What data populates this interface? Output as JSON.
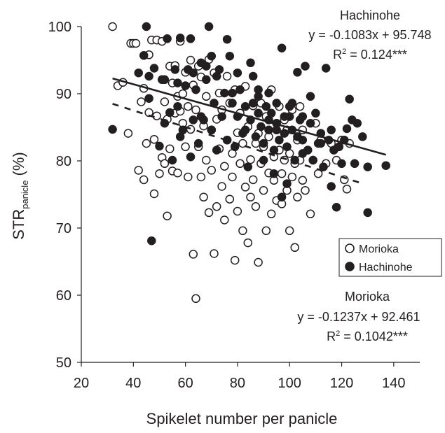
{
  "chart_data": {
    "type": "scatter",
    "xlabel": "Spikelet number per panicle",
    "ylabel_main": "STR",
    "ylabel_sub": "panicle",
    "ylabel_unit": " (%)",
    "xlim": [
      20,
      150
    ],
    "ylim": [
      50,
      100
    ],
    "xticks": [
      20,
      40,
      60,
      80,
      100,
      120,
      140
    ],
    "yticks": [
      50,
      60,
      70,
      80,
      90,
      100
    ],
    "grid": false,
    "legend_position": "right",
    "series": [
      {
        "name": "Morioka",
        "marker": "open-circle",
        "line_style": "dashed",
        "regression": {
          "slope": -0.1237,
          "intercept": 92.461,
          "x_range": [
            32,
            128
          ]
        },
        "annotation": {
          "name": "Morioka",
          "equation": "y = -0.1237x + 92.461",
          "r2_prefix": "R",
          "r2_sup": "2",
          "r2_value": " = 0.1042***"
        },
        "points": [
          [
            32,
            100
          ],
          [
            34,
            91.2
          ],
          [
            36,
            91.7
          ],
          [
            38,
            84.1
          ],
          [
            39,
            97.5
          ],
          [
            40,
            97.5
          ],
          [
            41,
            97.5
          ],
          [
            42,
            78.6
          ],
          [
            43,
            88.8
          ],
          [
            44,
            77.2
          ],
          [
            44,
            90.8
          ],
          [
            45,
            82.6
          ],
          [
            46,
            95.8
          ],
          [
            46,
            87.2
          ],
          [
            47,
            98
          ],
          [
            48,
            83.2
          ],
          [
            48,
            75.1
          ],
          [
            49,
            98
          ],
          [
            49,
            86.7
          ],
          [
            50,
            78.1
          ],
          [
            51,
            97.8
          ],
          [
            51,
            80.5
          ],
          [
            52,
            88.8
          ],
          [
            52,
            79.6
          ],
          [
            53,
            71.8
          ],
          [
            53,
            86.2
          ],
          [
            54,
            94.1
          ],
          [
            54,
            81.8
          ],
          [
            55,
            91.6
          ],
          [
            55,
            78.5
          ],
          [
            56,
            87.1
          ],
          [
            56,
            94.2
          ],
          [
            57,
            89.6
          ],
          [
            57,
            78.2
          ],
          [
            58,
            87.4
          ],
          [
            58,
            97.8
          ],
          [
            59,
            90
          ],
          [
            59,
            85.6
          ],
          [
            60,
            93.2
          ],
          [
            60,
            82.1
          ],
          [
            61,
            88.1
          ],
          [
            61,
            77.6
          ],
          [
            62,
            95
          ],
          [
            62,
            84.7
          ],
          [
            63,
            91.3
          ],
          [
            63,
            66.1
          ],
          [
            64,
            87.6
          ],
          [
            64,
            59.5
          ],
          [
            65,
            82.1
          ],
          [
            65,
            94.1
          ],
          [
            66,
            77.6
          ],
          [
            66,
            92.5
          ],
          [
            67,
            74.6
          ],
          [
            67,
            85.2
          ],
          [
            68,
            89.6
          ],
          [
            68,
            80.1
          ],
          [
            69,
            72.3
          ],
          [
            69,
            95.1
          ],
          [
            70,
            84.6
          ],
          [
            70,
            78.6
          ],
          [
            71,
            93.1
          ],
          [
            71,
            66.2
          ],
          [
            72,
            86.2
          ],
          [
            72,
            73.2
          ],
          [
            73,
            81.8
          ],
          [
            73,
            90.1
          ],
          [
            74,
            76.2
          ],
          [
            74,
            87.6
          ],
          [
            75,
            79.2
          ],
          [
            75,
            71.2
          ],
          [
            76,
            92.6
          ],
          [
            76,
            83.1
          ],
          [
            77,
            74.3
          ],
          [
            77,
            88.6
          ],
          [
            78,
            81.1
          ],
          [
            78,
            77.6
          ],
          [
            79,
            90.6
          ],
          [
            79,
            65.2
          ],
          [
            80,
            84.2
          ],
          [
            80,
            72.5
          ],
          [
            81,
            87.1
          ],
          [
            81,
            79.6
          ],
          [
            82,
            69.6
          ],
          [
            82,
            82.6
          ],
          [
            83,
            76.1
          ],
          [
            83,
            91.1
          ],
          [
            84,
            67.8
          ],
          [
            84,
            85.1
          ],
          [
            85,
            80.2
          ],
          [
            85,
            74.6
          ],
          [
            86,
            88.2
          ],
          [
            86,
            77.2
          ],
          [
            87,
            82.6
          ],
          [
            87,
            73.2
          ],
          [
            88,
            64.9
          ],
          [
            88,
            84.1
          ],
          [
            89,
            79.6
          ],
          [
            89,
            88.6
          ],
          [
            90,
            75.6
          ],
          [
            90,
            82.1
          ],
          [
            91,
            69.6
          ],
          [
            91,
            86.6
          ],
          [
            92,
            78.2
          ],
          [
            92,
            83.6
          ],
          [
            93,
            72.1
          ],
          [
            93,
            90.6
          ],
          [
            94,
            80.6
          ],
          [
            94,
            77.1
          ],
          [
            95,
            85.6
          ],
          [
            95,
            74.1
          ],
          [
            96,
            81.6
          ],
          [
            96,
            88.1
          ],
          [
            97,
            78.1
          ],
          [
            97,
            73.6
          ],
          [
            98,
            86.1
          ],
          [
            98,
            80.1
          ],
          [
            99,
            75.6
          ],
          [
            99,
            84.6
          ],
          [
            100,
            69.6
          ],
          [
            100,
            81.1
          ],
          [
            101,
            77.6
          ],
          [
            101,
            87.6
          ],
          [
            102,
            67.1
          ],
          [
            102,
            79.6
          ],
          [
            103,
            83.1
          ],
          [
            103,
            74.6
          ],
          [
            104,
            80.1
          ],
          [
            104,
            88.1
          ],
          [
            105,
            77.1
          ],
          [
            105,
            84.6
          ],
          [
            106,
            75.6
          ],
          [
            107,
            81.6
          ],
          [
            108,
            72.1
          ],
          [
            109,
            80.1
          ],
          [
            110,
            85.6
          ],
          [
            111,
            78.1
          ],
          [
            112,
            83.1
          ],
          [
            114,
            79.6
          ],
          [
            116,
            82.6
          ],
          [
            118,
            80.1
          ],
          [
            120,
            83.1
          ],
          [
            121,
            77.2
          ],
          [
            122,
            75.8
          ],
          [
            123,
            82.6
          ]
        ]
      },
      {
        "name": "Hachinohe",
        "marker": "filled-circle",
        "line_style": "solid",
        "regression": {
          "slope": -0.1083,
          "intercept": 95.748,
          "x_range": [
            32,
            137
          ]
        },
        "annotation": {
          "name": "Hachinohe",
          "equation": "y = -0.1083x + 95.748",
          "r2_prefix": "R",
          "r2_sup": "2",
          "r2_value": " = 0.124***"
        },
        "points": [
          [
            32,
            84.7
          ],
          [
            42,
            93.1
          ],
          [
            44,
            95.7
          ],
          [
            45,
            100
          ],
          [
            46,
            89.3
          ],
          [
            47,
            68.1
          ],
          [
            48,
            93.8
          ],
          [
            50,
            82.2
          ],
          [
            51,
            92.1
          ],
          [
            52,
            85.6
          ],
          [
            53,
            98.2
          ],
          [
            54,
            87.2
          ],
          [
            55,
            80.1
          ],
          [
            56,
            93.6
          ],
          [
            57,
            88.1
          ],
          [
            58,
            98.3
          ],
          [
            59,
            84.6
          ],
          [
            60,
            91.2
          ],
          [
            61,
            93.6
          ],
          [
            62,
            98.2
          ],
          [
            63,
            86.1
          ],
          [
            64,
            90.6
          ],
          [
            65,
            82.6
          ],
          [
            66,
            94.6
          ],
          [
            67,
            86.1
          ],
          [
            68,
            92.1
          ],
          [
            69,
            100
          ],
          [
            70,
            84.6
          ],
          [
            71,
            88.6
          ],
          [
            72,
            81.6
          ],
          [
            73,
            93.6
          ],
          [
            74,
            86.6
          ],
          [
            75,
            90.1
          ],
          [
            76,
            83.1
          ],
          [
            77,
            95.6
          ],
          [
            78,
            88.6
          ],
          [
            79,
            82.1
          ],
          [
            80,
            86.6
          ],
          [
            81,
            90.6
          ],
          [
            82,
            84.1
          ],
          [
            83,
            88.1
          ],
          [
            84,
            79.1
          ],
          [
            85,
            86.1
          ],
          [
            86,
            92.6
          ],
          [
            87,
            83.6
          ],
          [
            88,
            89.6
          ],
          [
            89,
            85.1
          ],
          [
            90,
            82.6
          ],
          [
            91,
            88.1
          ],
          [
            92,
            84.6
          ],
          [
            93,
            87.1
          ],
          [
            94,
            81.6
          ],
          [
            95,
            85.6
          ],
          [
            96,
            83.1
          ],
          [
            97,
            96.8
          ],
          [
            98,
            86.6
          ],
          [
            99,
            82.1
          ],
          [
            100,
            88.1
          ],
          [
            101,
            84.6
          ],
          [
            102,
            80.1
          ],
          [
            103,
            93.2
          ],
          [
            104,
            86.1
          ],
          [
            105,
            83.1
          ],
          [
            106,
            94.1
          ],
          [
            107,
            81.6
          ],
          [
            108,
            85.6
          ],
          [
            109,
            80.1
          ],
          [
            110,
            87.1
          ],
          [
            111,
            82.6
          ],
          [
            112,
            84.1
          ],
          [
            113,
            79.1
          ],
          [
            114,
            93.8
          ],
          [
            115,
            83.1
          ],
          [
            116,
            76.2
          ],
          [
            117,
            81.6
          ],
          [
            118,
            73.1
          ],
          [
            119,
            82.1
          ],
          [
            120,
            79.6
          ],
          [
            121,
            83.1
          ],
          [
            122,
            84.8
          ],
          [
            123,
            89.2
          ],
          [
            124,
            86.1
          ],
          [
            125,
            79.6
          ],
          [
            126,
            85.6
          ],
          [
            128,
            83.6
          ],
          [
            130,
            79.1
          ],
          [
            130,
            72.3
          ],
          [
            137,
            79.3
          ],
          [
            46,
            92.6
          ],
          [
            52,
            92.1
          ],
          [
            57,
            91.6
          ],
          [
            63,
            93.1
          ],
          [
            68,
            94.1
          ],
          [
            72,
            92.6
          ],
          [
            78,
            90.1
          ],
          [
            83,
            84.6
          ],
          [
            88,
            87.1
          ],
          [
            92,
            86.1
          ],
          [
            95,
            88.6
          ],
          [
            98,
            84.1
          ],
          [
            100,
            86.6
          ],
          [
            103,
            83.6
          ],
          [
            105,
            81.1
          ],
          [
            85,
            94.6
          ],
          [
            88,
            90.6
          ],
          [
            92,
            90.1
          ],
          [
            95,
            84.6
          ],
          [
            58,
            83.6
          ],
          [
            62,
            80.6
          ],
          [
            66,
            86.6
          ],
          [
            70,
            95.6
          ],
          [
            76,
            98.1
          ],
          [
            80,
            93.1
          ],
          [
            86,
            88.6
          ],
          [
            90,
            80.1
          ],
          [
            94,
            78.1
          ],
          [
            97,
            74.6
          ],
          [
            99,
            76.6
          ],
          [
            101,
            88.6
          ],
          [
            105,
            86.6
          ],
          [
            108,
            89.6
          ],
          [
            112,
            82.6
          ],
          [
            116,
            84.6
          ]
        ]
      }
    ]
  }
}
